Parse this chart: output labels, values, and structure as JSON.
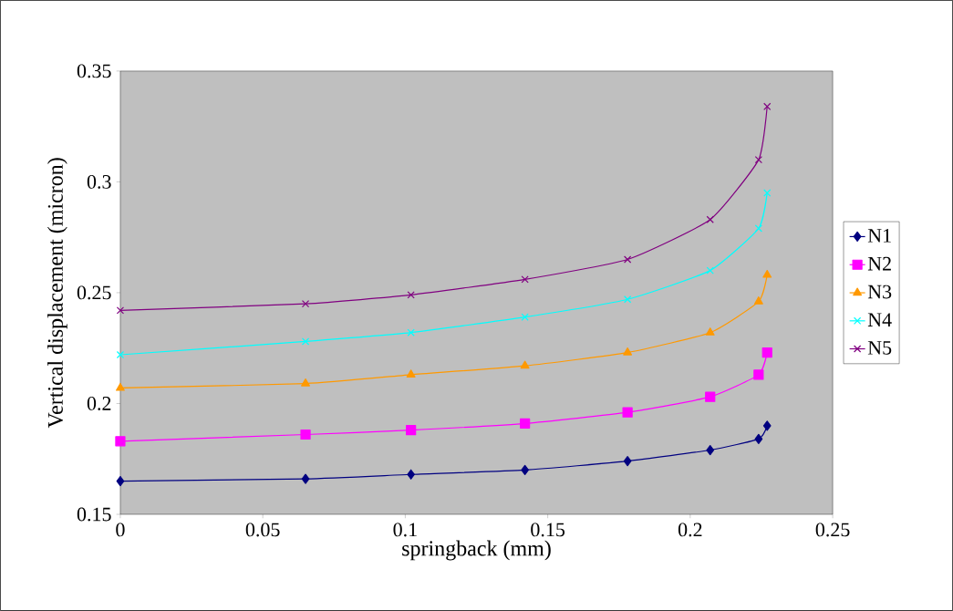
{
  "chart_data": {
    "type": "line",
    "xlabel": "springback (mm)",
    "ylabel": "Vertical displacement (micron)",
    "x": [
      0,
      0.065,
      0.102,
      0.142,
      0.178,
      0.207,
      0.224,
      0.227
    ],
    "series": [
      {
        "name": "N1",
        "color": "#000080",
        "marker": "diamond",
        "values": [
          0.165,
          0.166,
          0.168,
          0.17,
          0.174,
          0.179,
          0.184,
          0.19
        ]
      },
      {
        "name": "N2",
        "color": "#ff00ff",
        "marker": "square",
        "values": [
          0.183,
          0.186,
          0.188,
          0.191,
          0.196,
          0.203,
          0.213,
          0.223
        ]
      },
      {
        "name": "N3",
        "color": "#ff9900",
        "marker": "triangle",
        "values": [
          0.207,
          0.209,
          0.213,
          0.217,
          0.223,
          0.232,
          0.246,
          0.258
        ]
      },
      {
        "name": "N4",
        "color": "#00ffff",
        "marker": "cross",
        "values": [
          0.222,
          0.228,
          0.232,
          0.239,
          0.247,
          0.26,
          0.279,
          0.295
        ]
      },
      {
        "name": "N5",
        "color": "#800080",
        "marker": "cross",
        "values": [
          0.242,
          0.245,
          0.249,
          0.256,
          0.265,
          0.283,
          0.31,
          0.334
        ]
      }
    ],
    "xlim": [
      0,
      0.25
    ],
    "ylim": [
      0.15,
      0.35
    ],
    "xticks": [
      0,
      0.05,
      0.1,
      0.15,
      0.2,
      0.25
    ],
    "yticks": [
      0.15,
      0.2,
      0.25,
      0.3,
      0.35
    ],
    "legend": "right"
  }
}
